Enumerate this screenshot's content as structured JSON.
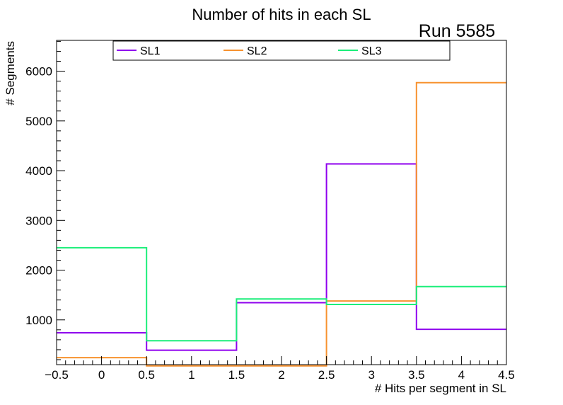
{
  "chart_data": {
    "type": "histogram-step",
    "title": "Number of hits in each SL",
    "annotation": "Run 5585",
    "xlabel": "# Hits per segment in SL",
    "ylabel": "# Segments",
    "xlim": [
      -0.5,
      4.5
    ],
    "ylim": [
      100,
      6620
    ],
    "bin_edges": [
      -0.5,
      0.5,
      1.5,
      2.5,
      3.5,
      4.5
    ],
    "x_ticks": [
      {
        "value": -0.5,
        "label": "−0.5"
      },
      {
        "value": 0,
        "label": "0"
      },
      {
        "value": 0.5,
        "label": "0.5"
      },
      {
        "value": 1,
        "label": "1"
      },
      {
        "value": 1.5,
        "label": "1.5"
      },
      {
        "value": 2,
        "label": "2"
      },
      {
        "value": 2.5,
        "label": "2.5"
      },
      {
        "value": 3,
        "label": "3"
      },
      {
        "value": 3.5,
        "label": "3.5"
      },
      {
        "value": 4,
        "label": "4"
      },
      {
        "value": 4.5,
        "label": "4.5"
      }
    ],
    "y_ticks": [
      {
        "value": 1000,
        "label": "1000"
      },
      {
        "value": 2000,
        "label": "2000"
      },
      {
        "value": 3000,
        "label": "3000"
      },
      {
        "value": 4000,
        "label": "4000"
      },
      {
        "value": 5000,
        "label": "5000"
      },
      {
        "value": 6000,
        "label": "6000"
      }
    ],
    "series": [
      {
        "name": "SL1",
        "color": "#8f00ee",
        "values": [
          740,
          390,
          1345,
          4135,
          810
        ]
      },
      {
        "name": "SL2",
        "color": "#f7922f",
        "values": [
          240,
          75,
          75,
          1380,
          5770
        ]
      },
      {
        "name": "SL3",
        "color": "#1cee7a",
        "values": [
          2450,
          580,
          1420,
          1310,
          1670
        ]
      }
    ],
    "legend_position": "top"
  }
}
